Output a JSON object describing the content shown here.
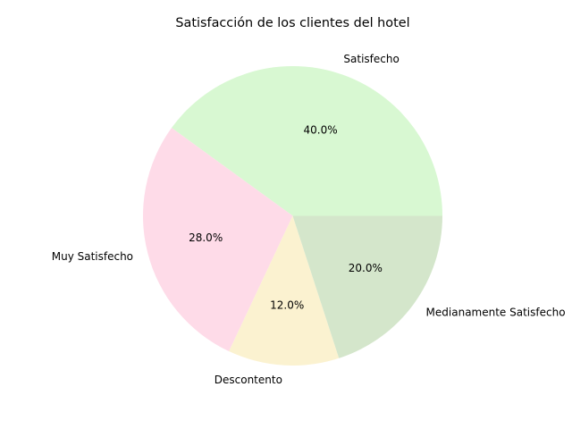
{
  "chart_data": {
    "type": "pie",
    "title": "Satisfacción de los clientes del hotel",
    "categories": [
      "Satisfecho",
      "Muy Satisfecho",
      "Descontento",
      "Medianamente Satisfecho"
    ],
    "values": [
      40.0,
      28.0,
      12.0,
      20.0
    ],
    "percent_labels": [
      "40.0%",
      "28.0%",
      "12.0%",
      "20.0%"
    ],
    "colors": [
      "#d8f8d2",
      "#fedbe8",
      "#fbf2d0",
      "#d4e6cb"
    ],
    "start_angle": 0,
    "direction": "counterclockwise",
    "legend": "none"
  }
}
